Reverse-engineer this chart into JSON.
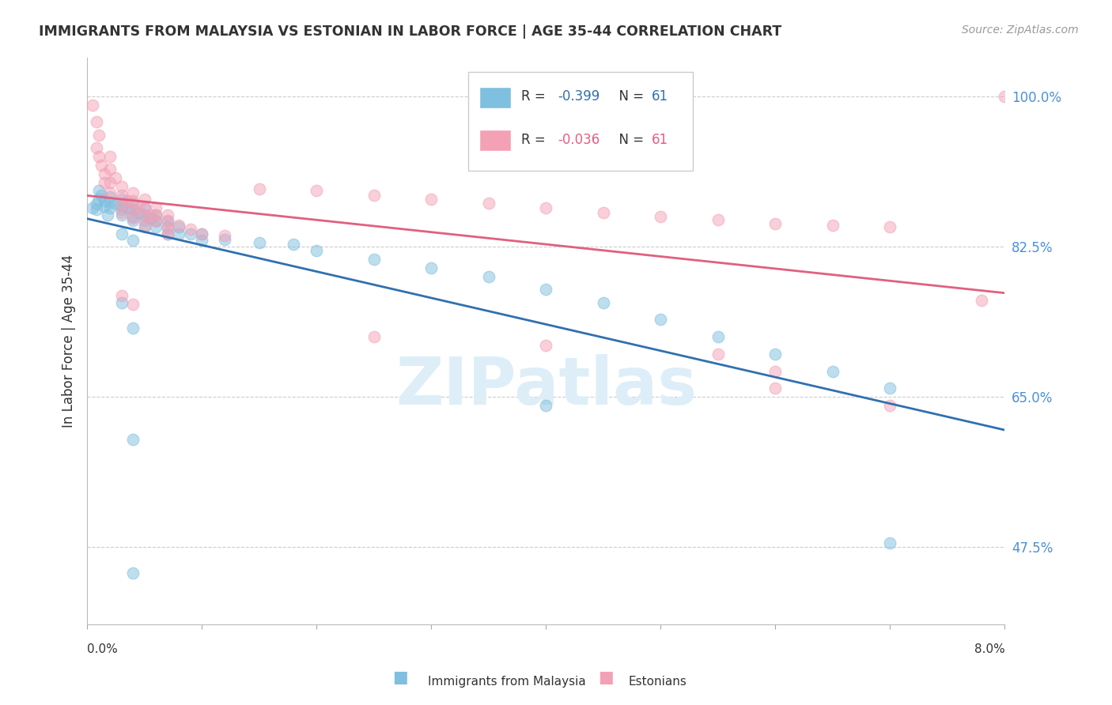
{
  "title": "IMMIGRANTS FROM MALAYSIA VS ESTONIAN IN LABOR FORCE | AGE 35-44 CORRELATION CHART",
  "source": "Source: ZipAtlas.com",
  "ylabel": "In Labor Force | Age 35-44",
  "ytick_values": [
    0.475,
    0.65,
    0.825,
    1.0
  ],
  "xmin": 0.0,
  "xmax": 0.08,
  "ymin": 0.385,
  "ymax": 1.045,
  "r_malaysia": -0.399,
  "r_estonian": -0.036,
  "n": 61,
  "blue_color": "#7fbfdf",
  "pink_color": "#f4a0b5",
  "blue_line_color": "#3070b0",
  "pink_line_color": "#e06080",
  "watermark": "ZIPatlas",
  "watermark_color": "#ddeef8",
  "malaysia_points": [
    [
      0.0005,
      0.87
    ],
    [
      0.0008,
      0.875
    ],
    [
      0.001,
      0.88
    ],
    [
      0.0008,
      0.868
    ],
    [
      0.001,
      0.89
    ],
    [
      0.0012,
      0.885
    ],
    [
      0.0015,
      0.878
    ],
    [
      0.0015,
      0.872
    ],
    [
      0.002,
      0.883
    ],
    [
      0.002,
      0.877
    ],
    [
      0.002,
      0.87
    ],
    [
      0.0018,
      0.862
    ],
    [
      0.0025,
      0.875
    ],
    [
      0.003,
      0.868
    ],
    [
      0.003,
      0.88
    ],
    [
      0.003,
      0.873
    ],
    [
      0.003,
      0.862
    ],
    [
      0.0035,
      0.87
    ],
    [
      0.004,
      0.876
    ],
    [
      0.004,
      0.868
    ],
    [
      0.004,
      0.86
    ],
    [
      0.004,
      0.855
    ],
    [
      0.0045,
      0.865
    ],
    [
      0.005,
      0.87
    ],
    [
      0.005,
      0.862
    ],
    [
      0.005,
      0.855
    ],
    [
      0.005,
      0.848
    ],
    [
      0.0055,
      0.858
    ],
    [
      0.006,
      0.862
    ],
    [
      0.006,
      0.855
    ],
    [
      0.006,
      0.848
    ],
    [
      0.007,
      0.855
    ],
    [
      0.007,
      0.848
    ],
    [
      0.007,
      0.84
    ],
    [
      0.008,
      0.848
    ],
    [
      0.008,
      0.84
    ],
    [
      0.009,
      0.84
    ],
    [
      0.01,
      0.84
    ],
    [
      0.01,
      0.832
    ],
    [
      0.012,
      0.833
    ],
    [
      0.015,
      0.83
    ],
    [
      0.018,
      0.828
    ],
    [
      0.02,
      0.82
    ],
    [
      0.025,
      0.81
    ],
    [
      0.03,
      0.8
    ],
    [
      0.035,
      0.79
    ],
    [
      0.04,
      0.775
    ],
    [
      0.045,
      0.76
    ],
    [
      0.05,
      0.74
    ],
    [
      0.055,
      0.72
    ],
    [
      0.06,
      0.7
    ],
    [
      0.065,
      0.68
    ],
    [
      0.07,
      0.66
    ],
    [
      0.003,
      0.84
    ],
    [
      0.004,
      0.832
    ],
    [
      0.003,
      0.76
    ],
    [
      0.004,
      0.73
    ],
    [
      0.004,
      0.6
    ],
    [
      0.004,
      0.445
    ],
    [
      0.04,
      0.64
    ],
    [
      0.07,
      0.48
    ]
  ],
  "estonian_points": [
    [
      0.0005,
      0.99
    ],
    [
      0.0008,
      0.97
    ],
    [
      0.001,
      0.955
    ],
    [
      0.0008,
      0.94
    ],
    [
      0.001,
      0.93
    ],
    [
      0.0012,
      0.92
    ],
    [
      0.0015,
      0.91
    ],
    [
      0.0015,
      0.9
    ],
    [
      0.002,
      0.93
    ],
    [
      0.002,
      0.915
    ],
    [
      0.002,
      0.9
    ],
    [
      0.002,
      0.888
    ],
    [
      0.0025,
      0.905
    ],
    [
      0.003,
      0.895
    ],
    [
      0.003,
      0.885
    ],
    [
      0.003,
      0.875
    ],
    [
      0.003,
      0.865
    ],
    [
      0.0035,
      0.878
    ],
    [
      0.004,
      0.888
    ],
    [
      0.004,
      0.878
    ],
    [
      0.004,
      0.868
    ],
    [
      0.004,
      0.858
    ],
    [
      0.0045,
      0.87
    ],
    [
      0.005,
      0.88
    ],
    [
      0.005,
      0.87
    ],
    [
      0.005,
      0.86
    ],
    [
      0.005,
      0.85
    ],
    [
      0.0055,
      0.862
    ],
    [
      0.006,
      0.87
    ],
    [
      0.006,
      0.862
    ],
    [
      0.006,
      0.854
    ],
    [
      0.007,
      0.862
    ],
    [
      0.007,
      0.854
    ],
    [
      0.007,
      0.846
    ],
    [
      0.007,
      0.84
    ],
    [
      0.008,
      0.85
    ],
    [
      0.009,
      0.845
    ],
    [
      0.01,
      0.84
    ],
    [
      0.012,
      0.838
    ],
    [
      0.015,
      0.892
    ],
    [
      0.02,
      0.89
    ],
    [
      0.025,
      0.885
    ],
    [
      0.03,
      0.88
    ],
    [
      0.035,
      0.876
    ],
    [
      0.04,
      0.87
    ],
    [
      0.045,
      0.865
    ],
    [
      0.05,
      0.86
    ],
    [
      0.055,
      0.856
    ],
    [
      0.06,
      0.852
    ],
    [
      0.065,
      0.85
    ],
    [
      0.07,
      0.848
    ],
    [
      0.003,
      0.768
    ],
    [
      0.004,
      0.758
    ],
    [
      0.025,
      0.72
    ],
    [
      0.04,
      0.71
    ],
    [
      0.055,
      0.7
    ],
    [
      0.06,
      0.68
    ],
    [
      0.06,
      0.66
    ],
    [
      0.07,
      0.64
    ],
    [
      0.08,
      1.0
    ],
    [
      0.078,
      0.762
    ]
  ]
}
